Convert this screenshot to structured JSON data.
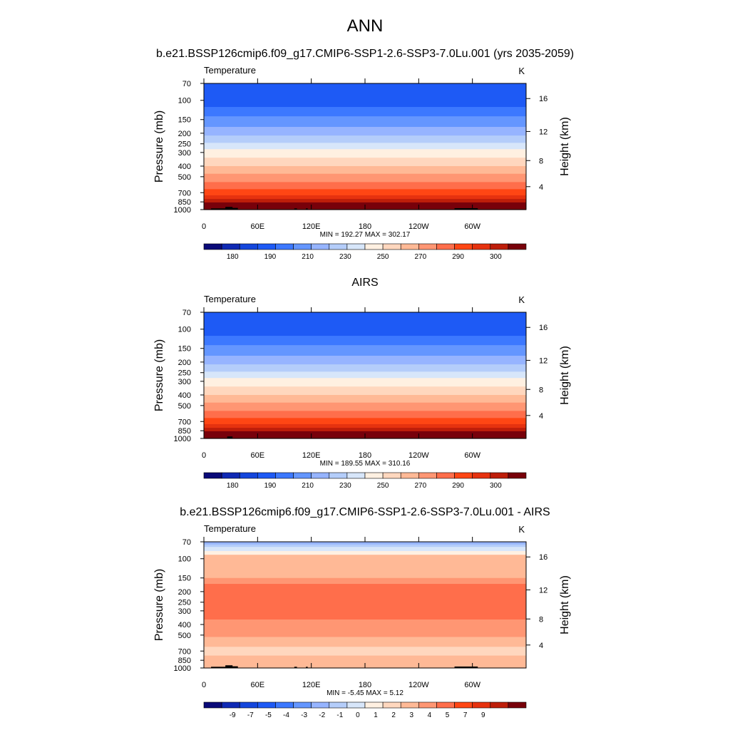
{
  "figure": {
    "title": "ANN"
  },
  "palettes": {
    "absolute": [
      "#0a0a78",
      "#0f29b4",
      "#1446dc",
      "#1e5af5",
      "#3c78ff",
      "#6496ff",
      "#96b4ff",
      "#b4cdfa",
      "#d7e6fa",
      "#fff0e1",
      "#ffd7be",
      "#ffb996",
      "#ff9673",
      "#ff6e4b",
      "#ff4614",
      "#e6320f",
      "#be1e0a",
      "#78000a"
    ],
    "difference": [
      "#0a0a78",
      "#0f29b4",
      "#1446dc",
      "#1e5af5",
      "#3c78ff",
      "#6496ff",
      "#96b4ff",
      "#b4cdfa",
      "#d7e6fa",
      "#fff0e1",
      "#ffd7be",
      "#ffb996",
      "#ff9673",
      "#ff6e4b",
      "#ff4614",
      "#e6320f",
      "#be1e0a",
      "#78000a"
    ]
  },
  "chart_data": [
    {
      "type": "heatmap",
      "title": "b.e21.BSSP126cmip6.f09_g17.CMIP6-SSP1-2.6-SSP3-7.0Lu.001 (yrs 2035-2059)",
      "left_label": "Temperature",
      "right_label": "K",
      "ylabel": "Pressure (mb)",
      "ylabel_right": "Height (km)",
      "x_ticks": [
        "0",
        "60E",
        "120E",
        "180",
        "120W",
        "60W"
      ],
      "x_tick_lon": [
        0,
        60,
        120,
        180,
        240,
        300
      ],
      "xlim": [
        0,
        360
      ],
      "y_ticks": [
        "70",
        "100",
        "150",
        "200",
        "250",
        "300",
        "400",
        "500",
        "700",
        "850",
        "1000"
      ],
      "y_scale": "log",
      "ylim": [
        1000,
        70
      ],
      "right_ticks": [
        "16",
        "12",
        "8",
        "4"
      ],
      "stats": "MIN = 192.27  MAX = 302.17",
      "min": 192.27,
      "max": 302.17,
      "colorbar_labels": [
        "180",
        "190",
        "210",
        "230",
        "250",
        "270",
        "290",
        "300"
      ],
      "palette": "absolute",
      "band_bounds_mb": [
        70,
        115,
        140,
        175,
        210,
        245,
        280,
        335,
        400,
        470,
        560,
        650,
        740,
        800,
        860,
        920,
        1000
      ],
      "band_colors": [
        3,
        4,
        5,
        6,
        7,
        8,
        9,
        10,
        11,
        12,
        13,
        14,
        15,
        16,
        17,
        17
      ],
      "terrain": [
        {
          "lon": [
            8,
            30
          ],
          "p": 975
        },
        {
          "lon": [
            24,
            32
          ],
          "p": 945
        },
        {
          "lon": [
            30,
            38
          ],
          "p": 965
        },
        {
          "lon": [
            101,
            104
          ],
          "p": 975
        },
        {
          "lon": [
            114,
            116
          ],
          "p": 975
        },
        {
          "lon": [
            280,
            306
          ],
          "p": 970
        }
      ]
    },
    {
      "type": "heatmap",
      "title": "AIRS",
      "left_label": "Temperature",
      "right_label": "K",
      "ylabel": "Pressure (mb)",
      "ylabel_right": "Height (km)",
      "x_ticks": [
        "0",
        "60E",
        "120E",
        "180",
        "120W",
        "60W"
      ],
      "x_tick_lon": [
        0,
        60,
        120,
        180,
        240,
        300
      ],
      "xlim": [
        0,
        360
      ],
      "y_ticks": [
        "70",
        "100",
        "150",
        "200",
        "250",
        "300",
        "400",
        "500",
        "700",
        "850",
        "1000"
      ],
      "y_scale": "log",
      "ylim": [
        1000,
        70
      ],
      "right_ticks": [
        "16",
        "12",
        "8",
        "4"
      ],
      "stats": "MIN = 189.55  MAX = 310.16",
      "min": 189.55,
      "max": 310.16,
      "colorbar_labels": [
        "180",
        "190",
        "210",
        "230",
        "250",
        "270",
        "290",
        "300"
      ],
      "palette": "absolute",
      "band_bounds_mb": [
        70,
        115,
        140,
        175,
        210,
        245,
        280,
        335,
        400,
        470,
        560,
        650,
        740,
        800,
        860,
        920,
        1000
      ],
      "band_colors": [
        3,
        4,
        5,
        6,
        7,
        8,
        9,
        10,
        11,
        12,
        13,
        14,
        15,
        16,
        17,
        17
      ],
      "terrain": [
        {
          "lon": [
            26,
            32
          ],
          "p": 960
        }
      ]
    },
    {
      "type": "heatmap",
      "title": "b.e21.BSSP126cmip6.f09_g17.CMIP6-SSP1-2.6-SSP3-7.0Lu.001 - AIRS",
      "left_label": "Temperature",
      "right_label": "K",
      "ylabel": "Pressure (mb)",
      "ylabel_right": "Height (km)",
      "x_ticks": [
        "0",
        "60E",
        "120E",
        "180",
        "120W",
        "60W"
      ],
      "x_tick_lon": [
        0,
        60,
        120,
        180,
        240,
        300
      ],
      "xlim": [
        0,
        360
      ],
      "y_ticks": [
        "70",
        "100",
        "150",
        "200",
        "250",
        "300",
        "400",
        "500",
        "700",
        "850",
        "1000"
      ],
      "y_scale": "log",
      "ylim": [
        1000,
        70
      ],
      "right_ticks": [
        "16",
        "12",
        "8",
        "4"
      ],
      "stats": "MIN =  -5.45  MAX =   5.12",
      "min": -5.45,
      "max": 5.12,
      "colorbar_labels": [
        "-9",
        "-7",
        "-5",
        "-4",
        "-3",
        "-2",
        "-1",
        "0",
        "1",
        "2",
        "3",
        "4",
        "5",
        "7",
        "9"
      ],
      "palette": "difference",
      "band_bounds_mb": [
        70,
        74,
        78,
        85,
        92,
        150,
        170,
        360,
        520,
        640,
        770,
        1000
      ],
      "band_colors": [
        6,
        7,
        8,
        9,
        11,
        12,
        13,
        12,
        11,
        10,
        11
      ],
      "terrain": [
        {
          "lon": [
            8,
            30
          ],
          "p": 975
        },
        {
          "lon": [
            24,
            32
          ],
          "p": 945
        },
        {
          "lon": [
            30,
            38
          ],
          "p": 965
        },
        {
          "lon": [
            101,
            104
          ],
          "p": 975
        },
        {
          "lon": [
            114,
            116
          ],
          "p": 975
        },
        {
          "lon": [
            280,
            306
          ],
          "p": 970
        }
      ]
    }
  ]
}
